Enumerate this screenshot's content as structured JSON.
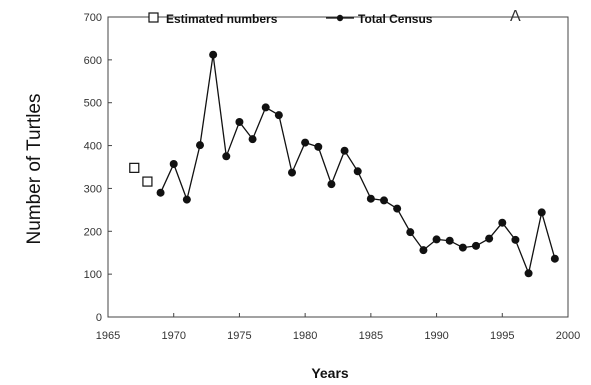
{
  "chart_data": {
    "type": "line",
    "title": "",
    "panel_label": "A",
    "xlabel": "Years",
    "ylabel": "Number of Turtles",
    "xlim": [
      1965,
      2000
    ],
    "ylim": [
      0,
      700
    ],
    "xticks": [
      "1965",
      "1970",
      "1975",
      "1980",
      "1985",
      "1990",
      "1995",
      "2000"
    ],
    "yticks": [
      "0",
      "100",
      "200",
      "300",
      "400",
      "500",
      "600",
      "700"
    ],
    "grid": false,
    "legend_position": "top-left",
    "legend": {
      "estimated": "Estimated numbers",
      "census": "Total Census"
    },
    "series": [
      {
        "name": "Estimated numbers",
        "marker": "open-square",
        "line": false,
        "x": [
          1967,
          1968
        ],
        "y": [
          348,
          316
        ]
      },
      {
        "name": "Total Census",
        "marker": "filled-circle",
        "line": true,
        "x": [
          1969,
          1970,
          1971,
          1972,
          1973,
          1974,
          1975,
          1976,
          1977,
          1978,
          1979,
          1980,
          1981,
          1982,
          1983,
          1984,
          1985,
          1986,
          1987,
          1988,
          1989,
          1990,
          1991,
          1992,
          1993,
          1994,
          1995,
          1996,
          1997,
          1998,
          1999
        ],
        "y": [
          290,
          357,
          274,
          401,
          612,
          375,
          455,
          415,
          489,
          471,
          337,
          407,
          397,
          310,
          388,
          340,
          276,
          272,
          253,
          198,
          156,
          181,
          178,
          162,
          166,
          183,
          220,
          180,
          102,
          244,
          136
        ]
      }
    ]
  }
}
